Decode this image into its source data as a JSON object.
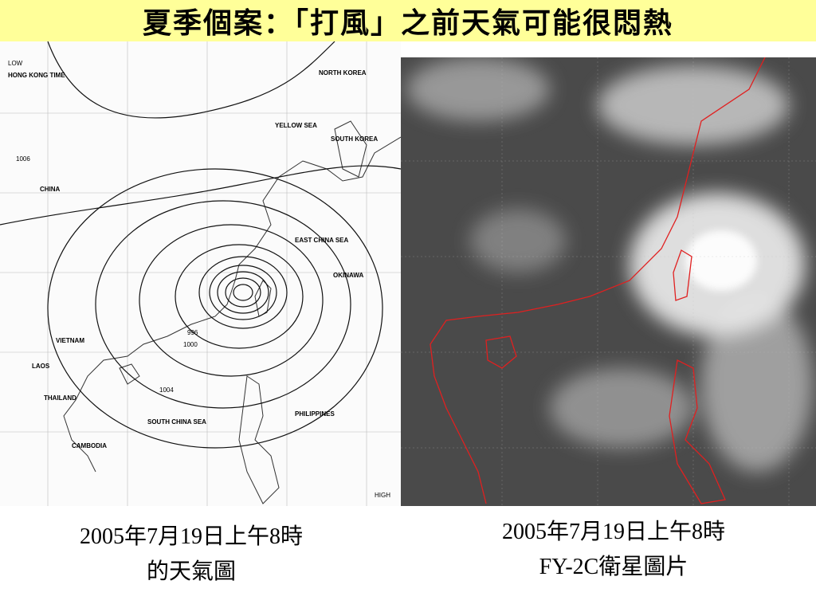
{
  "header": {
    "title": "夏季個案：「打風」之前天氣可能很悶熱"
  },
  "left_panel": {
    "caption_lines": [
      "2005年7月19日上午8時",
      "的天氣圖"
    ],
    "map_labels": [
      "CHINA",
      "VIETNAM",
      "LAOS",
      "THAILAND",
      "CAMBODIA",
      "PHILIPPINES",
      "SOUTH CHINA SEA",
      "EAST CHINA SEA",
      "YELLOW SEA",
      "NORTH KOREA",
      "SOUTH KOREA",
      "OKINAWA",
      "HIGH",
      "LOW",
      "1006",
      "1004",
      "1000",
      "996",
      "HONG KONG TIME"
    ]
  },
  "right_panel": {
    "caption_lines": [
      "2005年7月19日上午8時",
      "FY-2C衛星圖片"
    ]
  }
}
